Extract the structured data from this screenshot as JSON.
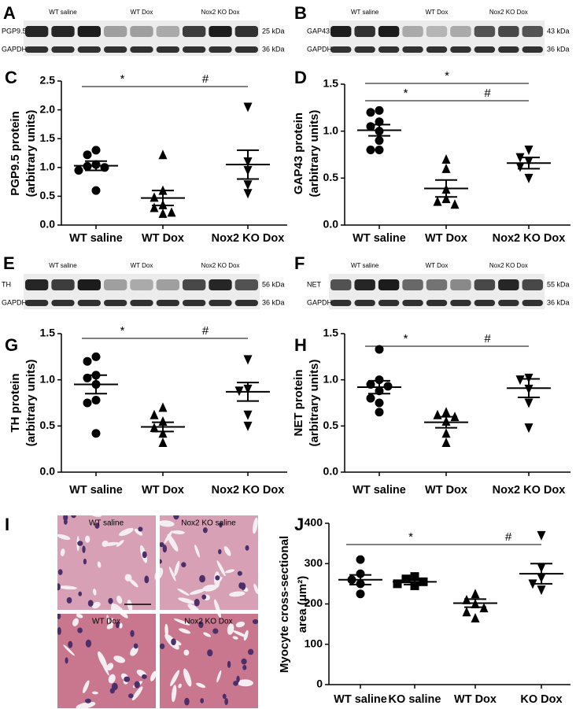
{
  "blots": [
    {
      "letter": "A",
      "groups": [
        "WT saline",
        "WT Dox",
        "Nox2 KO Dox"
      ],
      "rows": [
        {
          "label": "PGP9.5",
          "size": "25 kDa"
        },
        {
          "label": "GAPDH",
          "size": "36 kDa"
        }
      ]
    },
    {
      "letter": "B",
      "groups": [
        "WT saline",
        "WT Dox",
        "Nox2 KO Dox"
      ],
      "rows": [
        {
          "label": "GAP43",
          "size": "43 kDa"
        },
        {
          "label": "GAPDH",
          "size": "36 kDa"
        }
      ]
    },
    {
      "letter": "E",
      "groups": [
        "WT saline",
        "WT Dox",
        "Nox2 KO Dox"
      ],
      "rows": [
        {
          "label": "TH",
          "size": "56 kDa"
        },
        {
          "label": "GAPDH",
          "size": "36 kDa"
        }
      ]
    },
    {
      "letter": "F",
      "groups": [
        "WT saline",
        "WT Dox",
        "Nox2 KO Dox"
      ],
      "rows": [
        {
          "label": "NET",
          "size": "55 kDa"
        },
        {
          "label": "GAPDH",
          "size": "36 kDa"
        }
      ]
    }
  ],
  "histology": {
    "letter": "I",
    "labels": [
      "WT saline",
      "Nox2 KO saline",
      "WT Dox",
      "Nox2 KO Dox"
    ]
  },
  "chart_data": [
    {
      "type": "dotplot",
      "letter": "C",
      "ylabel": [
        "PGP9.5 protein",
        "(arbitrary units)"
      ],
      "ylim": [
        0,
        2.5
      ],
      "yticks": [
        {
          "value": 0,
          "label": "0.0"
        },
        0.5,
        {
          "value": 1,
          "label": "1.0"
        },
        1.5,
        {
          "value": 2,
          "label": "2.0"
        },
        2.5
      ],
      "color": "#000000",
      "groups": [
        {
          "name": "WT saline",
          "marker": "circle",
          "values": [
            1.3,
            1.22,
            1.05,
            1.02,
            1.0,
            0.95,
            0.6
          ],
          "mean": 1.03,
          "sem": 0.08
        },
        {
          "name": "WT Dox",
          "marker": "triangle",
          "values": [
            1.22,
            0.6,
            0.48,
            0.35,
            0.3,
            0.2,
            0.22
          ],
          "mean": 0.47,
          "sem": 0.13
        },
        {
          "name": "Nox2 KO Dox",
          "marker": "inverted-triangle",
          "values": [
            2.05,
            1.1,
            0.95,
            0.7,
            0.55
          ],
          "mean": 1.05,
          "sem": 0.25
        }
      ],
      "annotations": [
        {
          "text": "*",
          "between": [
            "WT saline",
            "WT Dox"
          ]
        },
        {
          "text": "#",
          "between": [
            "WT Dox",
            "Nox2 KO Dox"
          ]
        }
      ]
    },
    {
      "type": "dotplot",
      "letter": "D",
      "ylabel": [
        "GAP43 protein",
        "(arbitrary units)"
      ],
      "ylim": [
        0,
        1.5
      ],
      "yticks": [
        {
          "value": 0,
          "label": "0.0"
        },
        0.5,
        {
          "value": 1,
          "label": "1.0"
        },
        1.5
      ],
      "color": "#000000",
      "groups": [
        {
          "name": "WT saline",
          "marker": "circle",
          "values": [
            1.22,
            1.2,
            1.1,
            1.05,
            1.0,
            0.9,
            0.8,
            0.8
          ],
          "mean": 1.01,
          "sem": 0.06
        },
        {
          "name": "WT Dox",
          "marker": "triangle",
          "values": [
            0.7,
            0.6,
            0.38,
            0.28,
            0.25,
            0.22
          ],
          "mean": 0.39,
          "sem": 0.09
        },
        {
          "name": "Nox2 KO Dox",
          "marker": "inverted-triangle",
          "values": [
            0.8,
            0.72,
            0.68,
            0.62,
            0.5
          ],
          "mean": 0.66,
          "sem": 0.06
        }
      ],
      "annotations": [
        {
          "text": "*",
          "between": [
            "WT saline",
            "WT Dox"
          ]
        },
        {
          "text": "#",
          "between": [
            "WT Dox",
            "Nox2 KO Dox"
          ]
        },
        {
          "text": "*",
          "between": [
            "WT saline",
            "Nox2 KO Dox"
          ]
        }
      ]
    },
    {
      "type": "dotplot",
      "letter": "G",
      "ylabel": [
        "TH protein",
        "(arbitrary units)"
      ],
      "ylim": [
        0,
        1.5
      ],
      "yticks": [
        {
          "value": 0,
          "label": "0.0"
        },
        0.5,
        {
          "value": 1,
          "label": "1.0"
        },
        1.5
      ],
      "color": "#000000",
      "groups": [
        {
          "name": "WT saline",
          "marker": "circle",
          "values": [
            1.25,
            1.2,
            1.05,
            1.02,
            0.95,
            0.78,
            0.75,
            0.42
          ],
          "mean": 0.95,
          "sem": 0.1
        },
        {
          "name": "WT Dox",
          "marker": "triangle",
          "values": [
            0.7,
            0.62,
            0.55,
            0.48,
            0.42,
            0.32
          ],
          "mean": 0.49,
          "sem": 0.05
        },
        {
          "name": "Nox2 KO Dox",
          "marker": "inverted-triangle",
          "values": [
            1.22,
            0.9,
            0.88,
            0.62,
            0.5
          ],
          "mean": 0.87,
          "sem": 0.1
        }
      ],
      "annotations": [
        {
          "text": "*",
          "between": [
            "WT saline",
            "WT Dox"
          ]
        },
        {
          "text": "#",
          "between": [
            "WT Dox",
            "Nox2 KO Dox"
          ]
        }
      ]
    },
    {
      "type": "dotplot",
      "letter": "H",
      "ylabel": [
        "NET protein",
        "(arbitrary units)"
      ],
      "ylim": [
        0,
        1.5
      ],
      "yticks": [
        {
          "value": 0,
          "label": "0.0"
        },
        0.5,
        {
          "value": 1,
          "label": "1.0"
        },
        1.5
      ],
      "color": "#000000",
      "groups": [
        {
          "name": "WT saline",
          "marker": "circle",
          "values": [
            1.33,
            1.0,
            0.95,
            0.93,
            0.88,
            0.8,
            0.75,
            0.65
          ],
          "mean": 0.92,
          "sem": 0.07
        },
        {
          "name": "WT Dox",
          "marker": "triangle",
          "values": [
            0.65,
            0.62,
            0.6,
            0.55,
            0.42,
            0.32
          ],
          "mean": 0.54,
          "sem": 0.06
        },
        {
          "name": "Nox2 KO Dox",
          "marker": "inverted-triangle",
          "values": [
            1.02,
            1.0,
            0.9,
            0.75,
            0.48
          ],
          "mean": 0.91,
          "sem": 0.1
        }
      ],
      "annotations": [
        {
          "text": "*",
          "between": [
            "WT saline",
            "WT Dox"
          ]
        },
        {
          "text": "#",
          "between": [
            "WT Dox",
            "Nox2 KO Dox"
          ]
        }
      ]
    },
    {
      "type": "dotplot",
      "letter": "J",
      "ylabel": [
        "Myocyte cross-sectional",
        "area (μm²)"
      ],
      "ylim": [
        0,
        400
      ],
      "yticks": [
        0,
        100,
        200,
        300,
        400
      ],
      "color": "#000000",
      "groups": [
        {
          "name": "WT saline",
          "marker": "circle",
          "values": [
            310,
            275,
            260,
            250,
            225
          ],
          "mean": 260,
          "sem": 12
        },
        {
          "name": "KO saline",
          "marker": "square",
          "values": [
            268,
            262,
            255,
            250,
            245
          ],
          "mean": 255,
          "sem": 7
        },
        {
          "name": "WT Dox",
          "marker": "triangle",
          "values": [
            225,
            210,
            200,
            190,
            180,
            165
          ],
          "mean": 202,
          "sem": 10
        },
        {
          "name": "KO Dox",
          "marker": "inverted-triangle",
          "values": [
            370,
            290,
            265,
            250,
            235
          ],
          "mean": 275,
          "sem": 25
        }
      ],
      "annotations": [
        {
          "text": "*",
          "between": [
            "WT saline",
            "WT Dox"
          ]
        },
        {
          "text": "#",
          "between": [
            "WT Dox",
            "KO Dox"
          ]
        }
      ]
    }
  ]
}
